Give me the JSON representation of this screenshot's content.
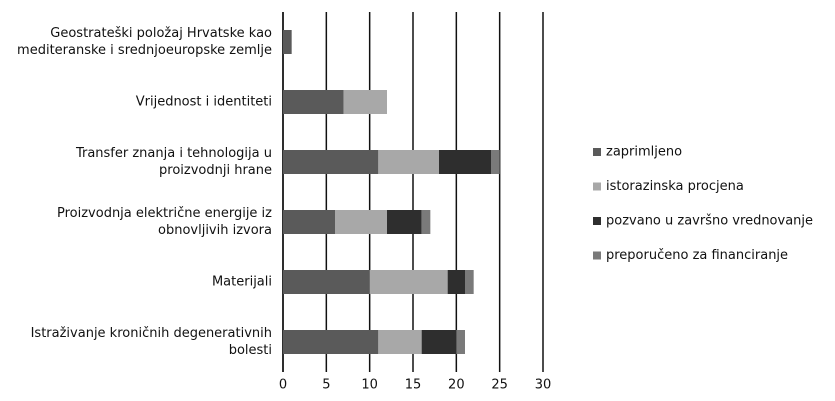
{
  "chart_data": {
    "type": "stacked-barh",
    "categories": [
      "Geostrateški položaj Hrvatske kao mediteranske i srednjoeuropske zemlje",
      "Vrijednost i identiteti",
      "Transfer znanja i tehnologija u proizvodnji hrane",
      "Proizvodnja električne energije iz obnovljivih izvora",
      "Materijali",
      "Istraživanje kroničnih degenerativnih bolesti"
    ],
    "series": [
      {
        "name": "zaprimljeno",
        "color": "#5a5a5a",
        "values": [
          1,
          7,
          11,
          6,
          10,
          11
        ]
      },
      {
        "name": "istorazinska procjena",
        "color": "#a8a8a8",
        "values": [
          0,
          5,
          7,
          6,
          9,
          5
        ]
      },
      {
        "name": "pozvano u završno vrednovanje",
        "color": "#2e2e2e",
        "values": [
          0,
          0,
          6,
          4,
          2,
          4
        ]
      },
      {
        "name": "preporučeno za financiranje",
        "color": "#7a7a7a",
        "values": [
          0,
          0,
          1,
          1,
          1,
          1
        ]
      }
    ],
    "xlim": [
      0,
      30
    ],
    "xticks": [
      0,
      5,
      10,
      15,
      20,
      25,
      30
    ],
    "grid": true,
    "legend": "right"
  }
}
